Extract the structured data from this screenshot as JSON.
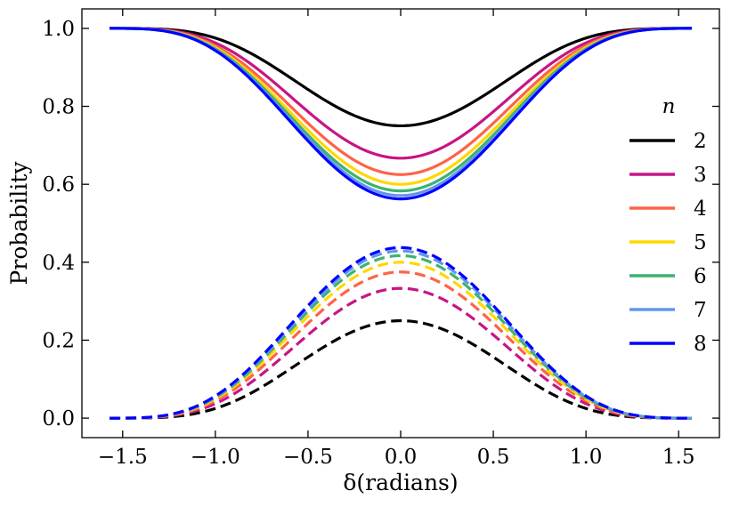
{
  "chart_data": {
    "type": "line",
    "title": "",
    "xlabel": "δ(radians)",
    "ylabel": "Probability",
    "xlim": [
      -1.72,
      1.72
    ],
    "ylim": [
      -0.05,
      1.05
    ],
    "xticks": [
      -1.5,
      -1.0,
      -0.5,
      0.0,
      0.5,
      1.0,
      1.5
    ],
    "xtick_labels": [
      "−1.5",
      "−1.0",
      "−0.5",
      "0.0",
      "0.5",
      "1.0",
      "1.5"
    ],
    "yticks": [
      0.0,
      0.2,
      0.4,
      0.6,
      0.8,
      1.0
    ],
    "ytick_labels": [
      "0.0",
      "0.2",
      "0.4",
      "0.6",
      "0.8",
      "1.0"
    ],
    "grid": false,
    "legend_title": "n",
    "legend_position": "right",
    "x_range": [
      -1.5708,
      1.5708
    ],
    "x_sampled": [
      -1.5708,
      -1.25,
      -1.0,
      -0.75,
      -0.5,
      -0.25,
      0.0,
      0.25,
      0.5,
      0.75,
      1.0,
      1.25,
      1.5708
    ],
    "line_styles": {
      "solid": "one minus the dashed curve",
      "dashed": "transition probability"
    },
    "series": [
      {
        "name": "2",
        "color": "#000000",
        "peak_dashed": 0.25,
        "peak_solid_min": 0.75,
        "dashed_values": [
          0.0,
          0.01,
          0.05,
          0.11,
          0.17,
          0.23,
          0.25,
          0.23,
          0.17,
          0.11,
          0.05,
          0.01,
          0.0
        ]
      },
      {
        "name": "3",
        "color": "#c71585",
        "peak_dashed": 0.333,
        "peak_solid_min": 0.667,
        "dashed_values": [
          0.0,
          0.01,
          0.06,
          0.14,
          0.23,
          0.3,
          0.333,
          0.3,
          0.23,
          0.14,
          0.06,
          0.01,
          0.0
        ]
      },
      {
        "name": "4",
        "color": "#ff6347",
        "peak_dashed": 0.375,
        "peak_solid_min": 0.625,
        "dashed_values": [
          0.0,
          0.01,
          0.06,
          0.15,
          0.26,
          0.34,
          0.375,
          0.34,
          0.26,
          0.15,
          0.06,
          0.01,
          0.0
        ]
      },
      {
        "name": "5",
        "color": "#ffd700",
        "peak_dashed": 0.4,
        "peak_solid_min": 0.6,
        "dashed_values": [
          0.0,
          0.01,
          0.07,
          0.16,
          0.28,
          0.37,
          0.4,
          0.37,
          0.28,
          0.16,
          0.07,
          0.01,
          0.0
        ]
      },
      {
        "name": "6",
        "color": "#3cb371",
        "peak_dashed": 0.417,
        "peak_solid_min": 0.583,
        "dashed_values": [
          0.0,
          0.01,
          0.07,
          0.17,
          0.29,
          0.38,
          0.417,
          0.38,
          0.29,
          0.17,
          0.07,
          0.01,
          0.0
        ]
      },
      {
        "name": "7",
        "color": "#6495ed",
        "peak_dashed": 0.429,
        "peak_solid_min": 0.571,
        "dashed_values": [
          0.0,
          0.01,
          0.07,
          0.17,
          0.3,
          0.39,
          0.429,
          0.39,
          0.3,
          0.17,
          0.07,
          0.01,
          0.0
        ]
      },
      {
        "name": "8",
        "color": "#0000ff",
        "peak_dashed": 0.4375,
        "peak_solid_min": 0.5625,
        "dashed_values": [
          0.0,
          0.01,
          0.07,
          0.18,
          0.31,
          0.4,
          0.4375,
          0.4,
          0.31,
          0.18,
          0.07,
          0.01,
          0.0
        ]
      }
    ]
  }
}
